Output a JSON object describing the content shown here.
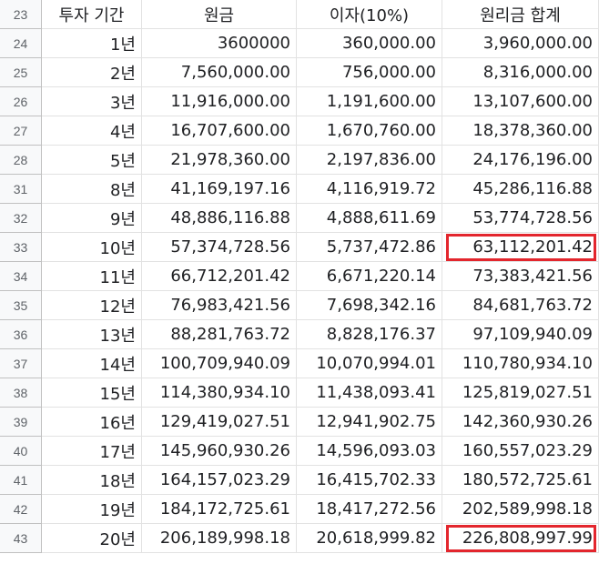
{
  "columns": [
    "투자 기간",
    "원금",
    "이자(10%)",
    "원리금 합계"
  ],
  "header_row_number": "23",
  "rows": [
    {
      "num": "24",
      "period": "1년",
      "principal": "3600000",
      "interest": "360,000.00",
      "total": "3,960,000.00"
    },
    {
      "num": "25",
      "period": "2년",
      "principal": "7,560,000.00",
      "interest": "756,000.00",
      "total": "8,316,000.00"
    },
    {
      "num": "26",
      "period": "3년",
      "principal": "11,916,000.00",
      "interest": "1,191,600.00",
      "total": "13,107,600.00"
    },
    {
      "num": "27",
      "period": "4년",
      "principal": "16,707,600.00",
      "interest": "1,670,760.00",
      "total": "18,378,360.00"
    },
    {
      "num": "28",
      "period": "5년",
      "principal": "21,978,360.00",
      "interest": "2,197,836.00",
      "total": "24,176,196.00"
    },
    {
      "num": "31",
      "period": "8년",
      "principal": "41,169,197.16",
      "interest": "4,116,919.72",
      "total": "45,286,116.88"
    },
    {
      "num": "32",
      "period": "9년",
      "principal": "48,886,116.88",
      "interest": "4,888,611.69",
      "total": "53,774,728.56"
    },
    {
      "num": "33",
      "period": "10년",
      "principal": "57,374,728.56",
      "interest": "5,737,472.86",
      "total": "63,112,201.42"
    },
    {
      "num": "34",
      "period": "11년",
      "principal": "66,712,201.42",
      "interest": "6,671,220.14",
      "total": "73,383,421.56"
    },
    {
      "num": "35",
      "period": "12년",
      "principal": "76,983,421.56",
      "interest": "7,698,342.16",
      "total": "84,681,763.72"
    },
    {
      "num": "36",
      "period": "13년",
      "principal": "88,281,763.72",
      "interest": "8,828,176.37",
      "total": "97,109,940.09"
    },
    {
      "num": "37",
      "period": "14년",
      "principal": "100,709,940.09",
      "interest": "10,070,994.01",
      "total": "110,780,934.10"
    },
    {
      "num": "38",
      "period": "15년",
      "principal": "114,380,934.10",
      "interest": "11,438,093.41",
      "total": "125,819,027.51"
    },
    {
      "num": "39",
      "period": "16년",
      "principal": "129,419,027.51",
      "interest": "12,941,902.75",
      "total": "142,360,930.26"
    },
    {
      "num": "40",
      "period": "17년",
      "principal": "145,960,930.26",
      "interest": "14,596,093.03",
      "total": "160,557,023.29"
    },
    {
      "num": "41",
      "period": "18년",
      "principal": "164,157,023.29",
      "interest": "16,415,702.33",
      "total": "180,572,725.61"
    },
    {
      "num": "42",
      "period": "19년",
      "principal": "184,172,725.61",
      "interest": "18,417,272.56",
      "total": "202,589,998.18"
    },
    {
      "num": "43",
      "period": "20년",
      "principal": "206,189,998.18",
      "interest": "20,618,999.82",
      "total": "226,808,997.99"
    }
  ],
  "highlighted_rows": [
    "33",
    "43"
  ],
  "highlight_color": "#e3262d"
}
